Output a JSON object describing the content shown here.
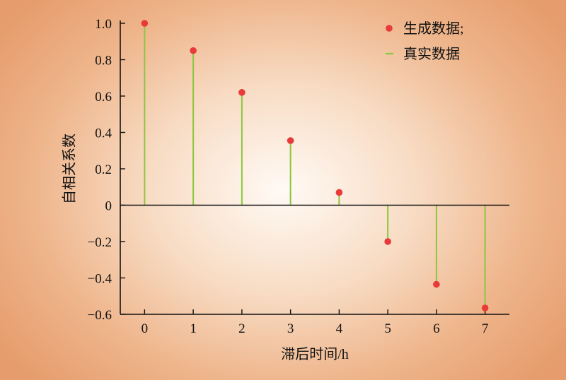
{
  "chart_data": {
    "type": "stem",
    "xlabel": "滞后时间/h",
    "ylabel": "自相关系数",
    "x": [
      0,
      1,
      2,
      3,
      4,
      5,
      6,
      7
    ],
    "xlim": [
      -0.5,
      7.5
    ],
    "ylim": [
      -0.6,
      1.0
    ],
    "yticks": [
      1.0,
      0.8,
      0.6,
      0.4,
      0.2,
      0,
      -0.2,
      -0.4,
      -0.6
    ],
    "ytick_labels": [
      "1.0",
      "0.8",
      "0.6",
      "0.4",
      "0.2",
      "0",
      "−0.2",
      "−0.4",
      "−0.6"
    ],
    "xtick_labels": [
      "0",
      "1",
      "2",
      "3",
      "4",
      "5",
      "6",
      "7"
    ],
    "series": [
      {
        "name": "生成数据;",
        "kind": "points",
        "values": [
          1.0,
          0.85,
          0.62,
          0.355,
          0.07,
          -0.2,
          -0.435,
          -0.565
        ],
        "color": "#e83a3a"
      },
      {
        "name": "真实数据",
        "kind": "stems",
        "values": [
          1.0,
          0.85,
          0.62,
          0.355,
          0.07,
          -0.2,
          -0.435,
          -0.565
        ],
        "color": "#8cc63f"
      }
    ],
    "legend_position": "top-right",
    "grid": false
  }
}
